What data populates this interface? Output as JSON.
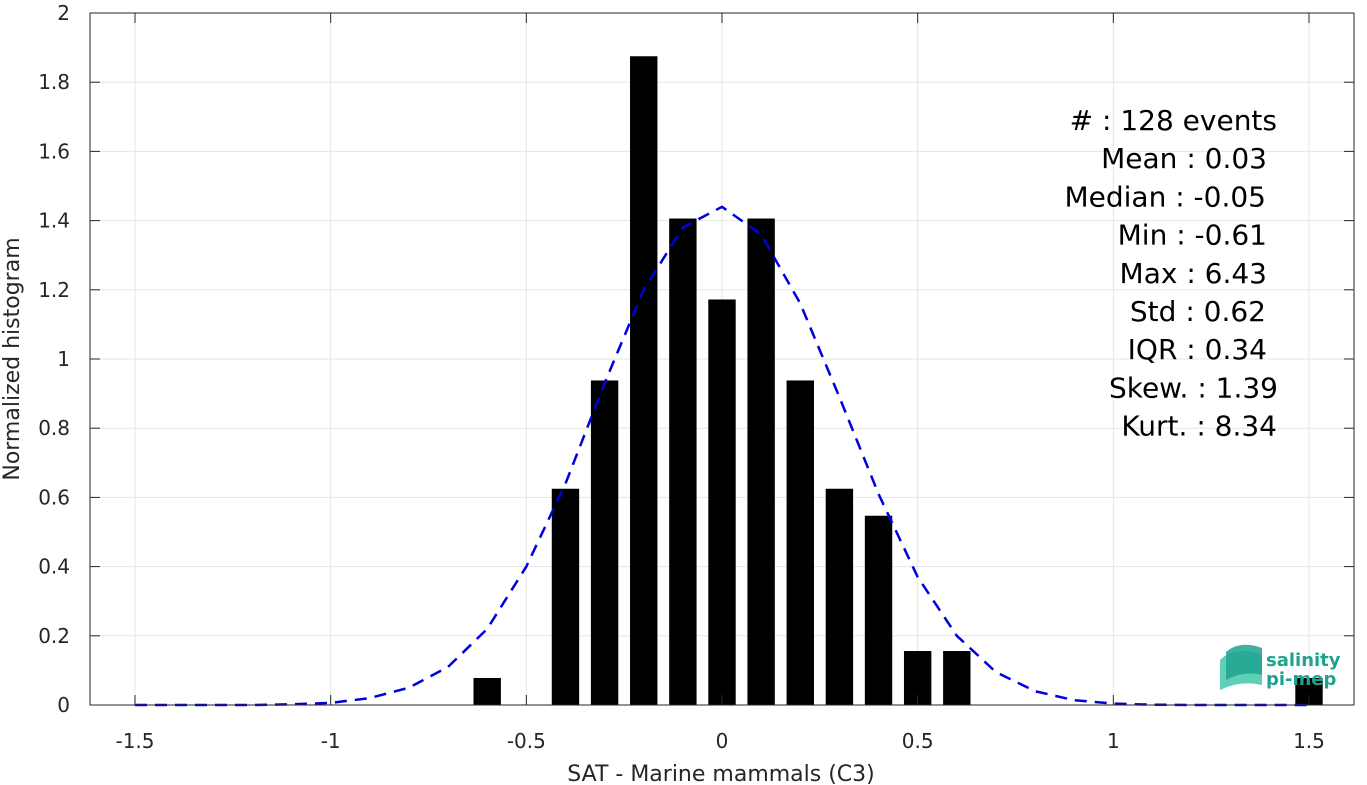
{
  "chart_data": {
    "type": "bar",
    "xlabel": "SAT - Marine mammals (C3)",
    "ylabel": "Normalized histogram",
    "xlim": [
      -1.615,
      1.615
    ],
    "ylim": [
      0,
      2
    ],
    "grid": true,
    "bar_width": 0.07,
    "x_ticks": [
      -1.5,
      -1,
      -0.5,
      0,
      0.5,
      1,
      1.5
    ],
    "x_tick_labels": [
      "-1.5",
      "-1",
      "-0.5",
      "0",
      "0.5",
      "1",
      "1.5"
    ],
    "y_ticks": [
      0,
      0.2,
      0.4,
      0.6,
      0.8,
      1,
      1.2,
      1.4,
      1.6,
      1.8,
      2
    ],
    "y_tick_labels": [
      "0",
      "0.2",
      "0.4",
      "0.6",
      "0.8",
      "1",
      "1.2",
      "1.4",
      "1.6",
      "1.8",
      "2"
    ],
    "bars": {
      "x": [
        -0.6,
        -0.4,
        -0.3,
        -0.2,
        -0.1,
        0,
        0.1,
        0.2,
        0.3,
        0.4,
        0.5,
        0.6,
        1.5
      ],
      "values": [
        0.078,
        0.625,
        0.938,
        1.875,
        1.406,
        1.172,
        1.406,
        0.938,
        0.625,
        0.547,
        0.156,
        0.156,
        0.078
      ],
      "color": "#000000"
    },
    "fit_curve": {
      "style": "dashed",
      "color": "#0000dd",
      "x": [
        -1.5,
        -1.4,
        -1.3,
        -1.2,
        -1.1,
        -1.0,
        -0.9,
        -0.8,
        -0.7,
        -0.6,
        -0.5,
        -0.4,
        -0.3,
        -0.2,
        -0.1,
        0.0,
        0.1,
        0.2,
        0.3,
        0.4,
        0.5,
        0.6,
        0.7,
        0.8,
        0.9,
        1.0,
        1.1,
        1.2,
        1.3,
        1.4,
        1.5
      ],
      "y": [
        0.0,
        0.0,
        0.0,
        0.0,
        0.002,
        0.006,
        0.02,
        0.05,
        0.11,
        0.22,
        0.4,
        0.64,
        0.93,
        1.2,
        1.38,
        1.44,
        1.36,
        1.16,
        0.89,
        0.61,
        0.37,
        0.2,
        0.095,
        0.04,
        0.014,
        0.004,
        0.001,
        0.0,
        0.0,
        0.0,
        0.0
      ]
    },
    "stats": [
      {
        "label": "#  : 128 events"
      },
      {
        "label": "Mean : 0.03"
      },
      {
        "label": "Median : -0.05"
      },
      {
        "label": "Min : -0.61"
      },
      {
        "label": "Max : 6.43"
      },
      {
        "label": "Std : 0.62"
      },
      {
        "label": "IQR : 0.34"
      },
      {
        "label": "Skew. : 1.39"
      },
      {
        "label": "Kurt. : 8.34"
      }
    ]
  },
  "logo": {
    "line1": "salinity",
    "line2": "pi-mep",
    "color": "#1fa38f"
  }
}
